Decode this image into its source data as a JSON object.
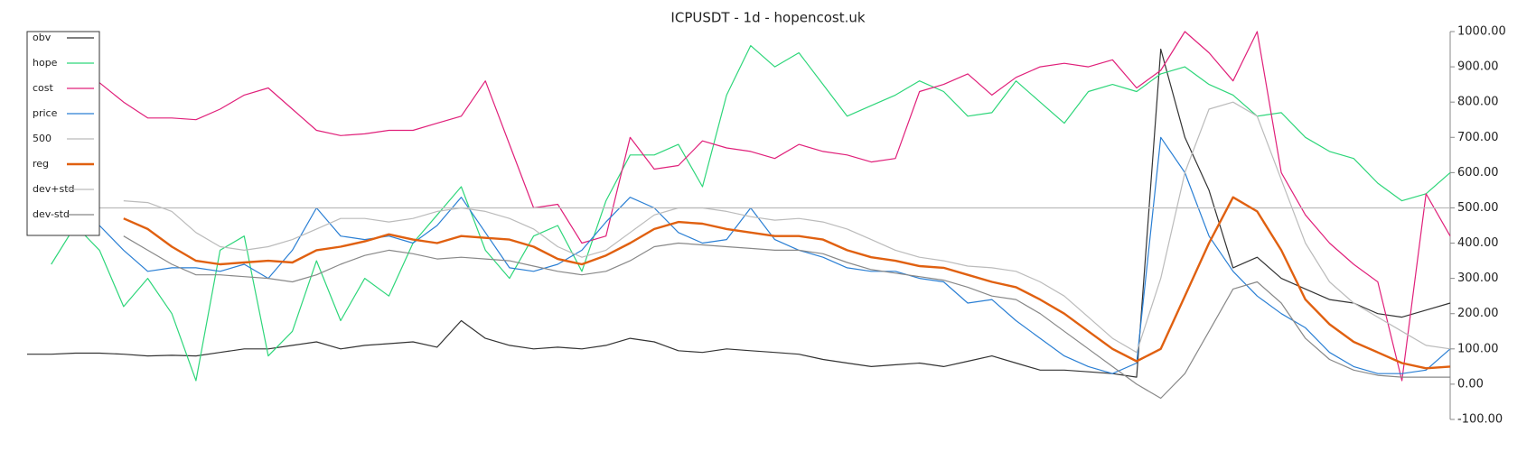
{
  "chart_data": {
    "type": "line",
    "title": "ICPUSDT - 1d - hopencost.uk",
    "categories": [
      null,
      null,
      null,
      null,
      null,
      null,
      null,
      null,
      null,
      null,
      null,
      null,
      null,
      null,
      null,
      null,
      null,
      null,
      null,
      null,
      null,
      null,
      null,
      null,
      null,
      null,
      null,
      null,
      null,
      null,
      null,
      null,
      null,
      null,
      null,
      null,
      null,
      null,
      null,
      null,
      null,
      null,
      null,
      null,
      null,
      null,
      null,
      null,
      null,
      null,
      null,
      null,
      null,
      null,
      null,
      null,
      null,
      null,
      null,
      null
    ],
    "ylim": [
      -100,
      1000
    ],
    "yticks": [
      {
        "value": -100,
        "label": "-100.00"
      },
      {
        "value": 0,
        "label": "0.00"
      },
      {
        "value": 100,
        "label": "100.00"
      },
      {
        "value": 200,
        "label": "200.00"
      },
      {
        "value": 300,
        "label": "300.00"
      },
      {
        "value": 400,
        "label": "400.00"
      },
      {
        "value": 500,
        "label": "500.00"
      },
      {
        "value": 600,
        "label": "600.00"
      },
      {
        "value": 700,
        "label": "700.00"
      },
      {
        "value": 800,
        "label": "800.00"
      },
      {
        "value": 900,
        "label": "900.00"
      },
      {
        "value": 1000,
        "label": "1000.00"
      }
    ],
    "grid": false,
    "legend": "upper left",
    "series": [
      {
        "name": "obv",
        "color": "#333333",
        "values": [
          85,
          85,
          88,
          88,
          85,
          80,
          82,
          80,
          90,
          100,
          100,
          110,
          120,
          100,
          110,
          115,
          120,
          105,
          180,
          130,
          110,
          100,
          105,
          100,
          110,
          130,
          120,
          95,
          90,
          100,
          95,
          90,
          85,
          70,
          60,
          50,
          55,
          60,
          50,
          65,
          80,
          60,
          40,
          40,
          35,
          30,
          20,
          950,
          700,
          550,
          330,
          360,
          300,
          270,
          240,
          230,
          200,
          190,
          210,
          230
        ]
      },
      {
        "name": "hope",
        "color": "#2ed67a",
        "values": [
          null,
          340,
          450,
          380,
          220,
          300,
          200,
          10,
          380,
          420,
          80,
          150,
          350,
          180,
          300,
          250,
          400,
          480,
          560,
          380,
          300,
          420,
          450,
          320,
          520,
          650,
          650,
          680,
          560,
          820,
          960,
          900,
          940,
          850,
          760,
          790,
          820,
          860,
          830,
          760,
          770,
          860,
          800,
          740,
          830,
          850,
          830,
          880,
          900,
          850,
          820,
          760,
          770,
          700,
          660,
          640,
          570,
          520,
          540,
          600
        ]
      },
      {
        "name": "cost",
        "color": "#e0207a",
        "values": [
          840,
          850,
          850,
          855,
          800,
          755,
          755,
          750,
          780,
          820,
          840,
          780,
          720,
          705,
          710,
          720,
          720,
          740,
          760,
          860,
          680,
          500,
          510,
          400,
          420,
          700,
          610,
          620,
          690,
          670,
          660,
          640,
          680,
          660,
          650,
          630,
          640,
          830,
          850,
          880,
          820,
          870,
          900,
          910,
          900,
          920,
          840,
          890,
          1000,
          940,
          860,
          1000,
          600,
          480,
          400,
          340,
          290,
          10,
          540,
          420
        ]
      },
      {
        "name": "price",
        "color": "#2a7fd4",
        "values": [
          null,
          null,
          null,
          450,
          380,
          320,
          330,
          330,
          320,
          340,
          300,
          380,
          500,
          420,
          410,
          420,
          400,
          450,
          530,
          430,
          330,
          320,
          340,
          380,
          460,
          530,
          500,
          430,
          400,
          410,
          500,
          410,
          380,
          360,
          330,
          320,
          320,
          300,
          290,
          230,
          240,
          180,
          130,
          80,
          50,
          30,
          60,
          700,
          600,
          420,
          320,
          250,
          200,
          160,
          90,
          50,
          30,
          30,
          40,
          100
        ]
      },
      {
        "name": "500",
        "color": "#bbbbbb",
        "values": [
          500,
          500,
          500,
          500,
          500,
          500,
          500,
          500,
          500,
          500,
          500,
          500,
          500,
          500,
          500,
          500,
          500,
          500,
          500,
          500,
          500,
          500,
          500,
          500,
          500,
          500,
          500,
          500,
          500,
          500,
          500,
          500,
          500,
          500,
          500,
          500,
          500,
          500,
          500,
          500,
          500,
          500,
          500,
          500,
          500,
          500,
          500,
          500,
          500,
          500,
          500,
          500,
          500,
          500,
          500,
          500,
          500,
          500,
          500,
          500
        ]
      },
      {
        "name": "reg",
        "color": "#e06010",
        "values": [
          null,
          null,
          null,
          null,
          470,
          440,
          390,
          350,
          340,
          345,
          350,
          345,
          380,
          390,
          405,
          425,
          410,
          400,
          420,
          415,
          410,
          390,
          355,
          340,
          365,
          400,
          440,
          460,
          455,
          440,
          430,
          420,
          420,
          410,
          380,
          360,
          350,
          335,
          330,
          310,
          290,
          275,
          240,
          200,
          150,
          100,
          65,
          100,
          250,
          400,
          530,
          490,
          380,
          240,
          170,
          120,
          90,
          60,
          45,
          50
        ]
      },
      {
        "name": "dev+std",
        "color": "#bbbbbb",
        "values": [
          null,
          null,
          null,
          null,
          520,
          515,
          490,
          430,
          390,
          380,
          390,
          410,
          440,
          470,
          470,
          460,
          470,
          490,
          500,
          490,
          470,
          440,
          390,
          360,
          380,
          430,
          480,
          500,
          500,
          490,
          475,
          465,
          470,
          460,
          440,
          410,
          380,
          360,
          350,
          335,
          330,
          320,
          290,
          250,
          190,
          130,
          90,
          300,
          600,
          780,
          800,
          760,
          580,
          400,
          290,
          230,
          190,
          150,
          110,
          100
        ]
      },
      {
        "name": "dev-std",
        "color": "#888888",
        "values": [
          null,
          null,
          null,
          null,
          420,
          380,
          340,
          310,
          310,
          305,
          300,
          290,
          310,
          340,
          365,
          380,
          370,
          355,
          360,
          355,
          350,
          335,
          320,
          310,
          320,
          350,
          390,
          400,
          395,
          390,
          385,
          380,
          380,
          370,
          345,
          325,
          315,
          305,
          295,
          275,
          250,
          240,
          200,
          150,
          100,
          50,
          0,
          -40,
          30,
          150,
          270,
          290,
          230,
          130,
          70,
          40,
          25,
          20,
          20,
          20
        ]
      }
    ]
  }
}
